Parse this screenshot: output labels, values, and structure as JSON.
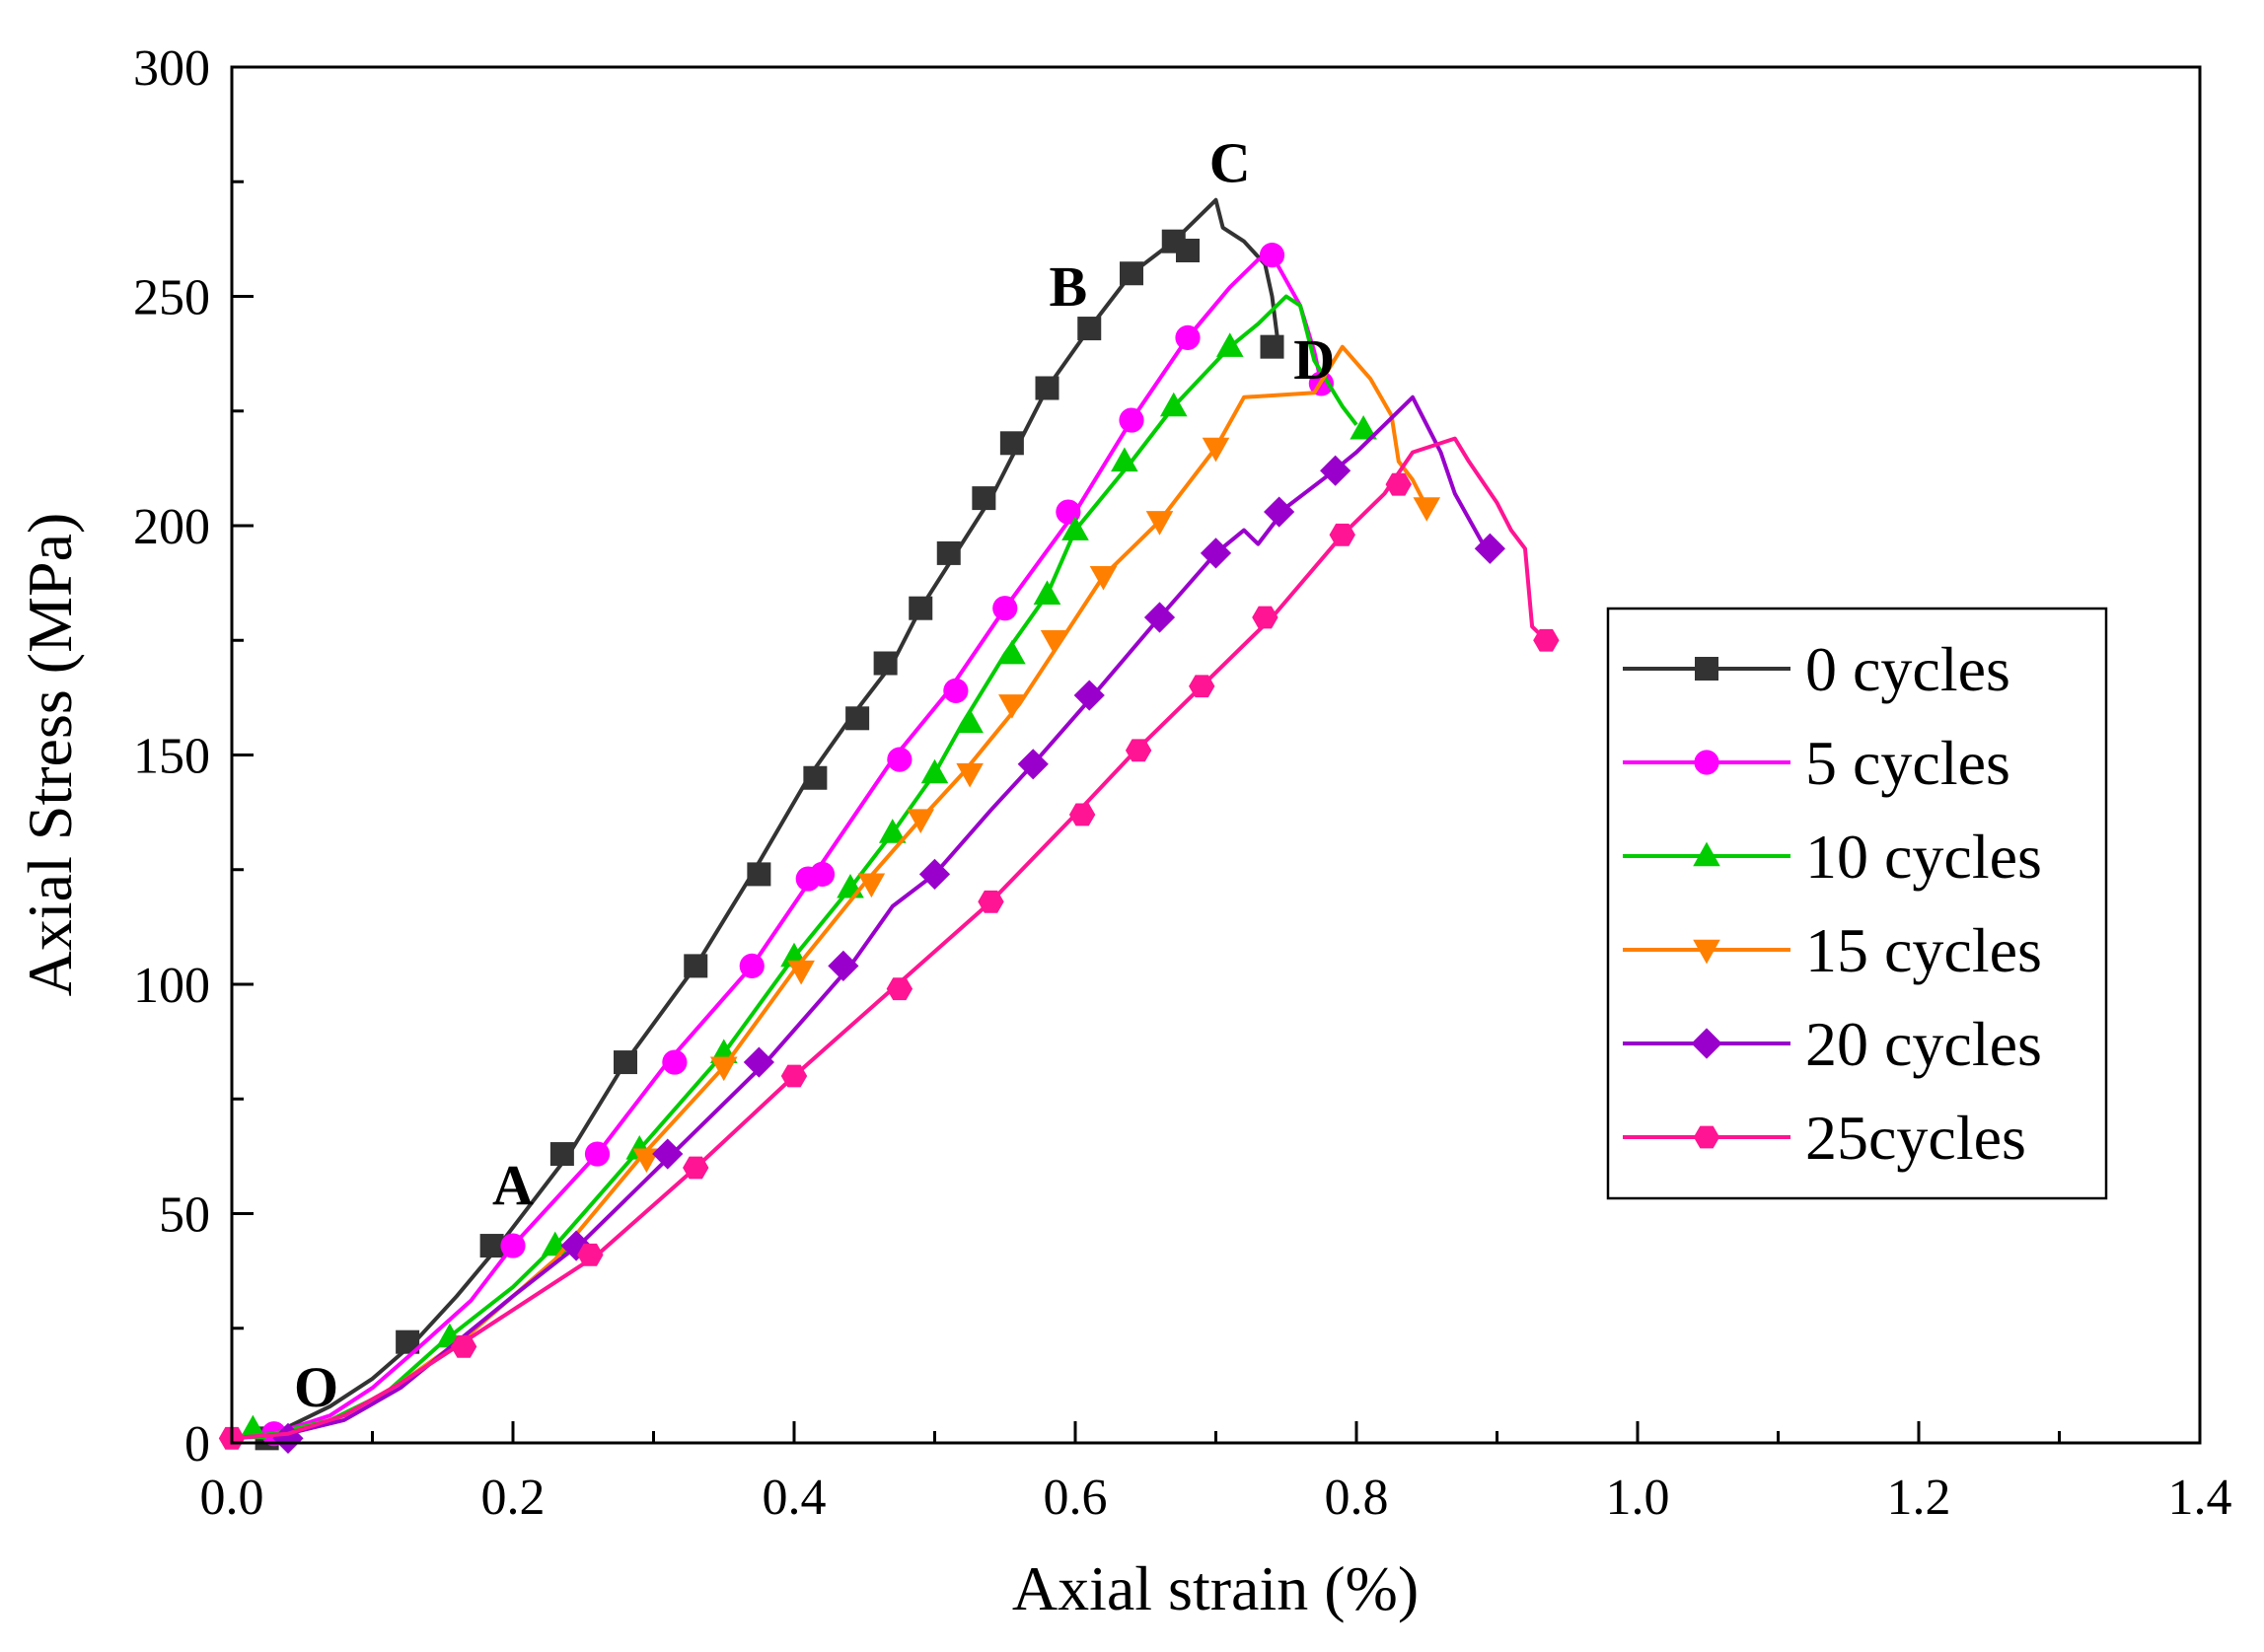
{
  "chart_data": {
    "type": "line",
    "xlabel": "Axial strain (%)",
    "ylabel": "Axial Stress (MPa)",
    "xlim": [
      0.0,
      1.4
    ],
    "ylim": [
      0,
      300
    ],
    "xticks": [
      "0.0",
      "0.2",
      "0.4",
      "0.6",
      "0.8",
      "1.0",
      "1.2",
      "1.4"
    ],
    "yticks": [
      "0",
      "50",
      "100",
      "150",
      "200",
      "250",
      "300"
    ],
    "legend_position": "right",
    "annotations": [
      {
        "text": "O",
        "x": 0.06,
        "y": 8
      },
      {
        "text": "A",
        "x": 0.2,
        "y": 52
      },
      {
        "text": "B",
        "x": 0.595,
        "y": 248
      },
      {
        "text": "C",
        "x": 0.71,
        "y": 275
      },
      {
        "text": "D",
        "x": 0.77,
        "y": 232
      }
    ],
    "series": [
      {
        "name": "0 cycles",
        "color": "#333333",
        "marker": "square",
        "line": [
          [
            0.0,
            1
          ],
          [
            0.03,
            2
          ],
          [
            0.07,
            8
          ],
          [
            0.1,
            14
          ],
          [
            0.13,
            22
          ],
          [
            0.16,
            32
          ],
          [
            0.19,
            43
          ],
          [
            0.24,
            63
          ],
          [
            0.28,
            83
          ],
          [
            0.33,
            104
          ],
          [
            0.37,
            124
          ],
          [
            0.41,
            145
          ],
          [
            0.44,
            158
          ],
          [
            0.47,
            170
          ],
          [
            0.49,
            182
          ],
          [
            0.515,
            194
          ],
          [
            0.54,
            206
          ],
          [
            0.56,
            218
          ],
          [
            0.58,
            230
          ],
          [
            0.61,
            243
          ],
          [
            0.64,
            255
          ],
          [
            0.67,
            262
          ],
          [
            0.7,
            271
          ],
          [
            0.705,
            265
          ],
          [
            0.72,
            262
          ],
          [
            0.735,
            257
          ],
          [
            0.74,
            250
          ],
          [
            0.745,
            238
          ]
        ],
        "markers": [
          [
            0.025,
            1
          ],
          [
            0.125,
            22
          ],
          [
            0.185,
            43
          ],
          [
            0.235,
            63
          ],
          [
            0.28,
            83
          ],
          [
            0.33,
            104
          ],
          [
            0.375,
            124
          ],
          [
            0.415,
            145
          ],
          [
            0.445,
            158
          ],
          [
            0.465,
            170
          ],
          [
            0.49,
            182
          ],
          [
            0.51,
            194
          ],
          [
            0.535,
            206
          ],
          [
            0.555,
            218
          ],
          [
            0.58,
            230
          ],
          [
            0.61,
            243
          ],
          [
            0.64,
            255
          ],
          [
            0.67,
            262
          ],
          [
            0.68,
            260
          ],
          [
            0.74,
            239
          ]
        ]
      },
      {
        "name": "5 cycles",
        "color": "#ff00ff",
        "marker": "circle",
        "line": [
          [
            0.0,
            1
          ],
          [
            0.03,
            2
          ],
          [
            0.07,
            6
          ],
          [
            0.1,
            12
          ],
          [
            0.13,
            20
          ],
          [
            0.17,
            31
          ],
          [
            0.2,
            43
          ],
          [
            0.26,
            63
          ],
          [
            0.31,
            83
          ],
          [
            0.37,
            104
          ],
          [
            0.41,
            122
          ],
          [
            0.47,
            149
          ],
          [
            0.51,
            164
          ],
          [
            0.55,
            182
          ],
          [
            0.6,
            203
          ],
          [
            0.64,
            223
          ],
          [
            0.68,
            241
          ],
          [
            0.71,
            252
          ],
          [
            0.73,
            258
          ],
          [
            0.74,
            259
          ],
          [
            0.76,
            248
          ],
          [
            0.77,
            238
          ],
          [
            0.775,
            231
          ]
        ],
        "markers": [
          [
            0.03,
            2
          ],
          [
            0.2,
            43
          ],
          [
            0.26,
            63
          ],
          [
            0.315,
            83
          ],
          [
            0.37,
            104
          ],
          [
            0.41,
            123
          ],
          [
            0.42,
            124
          ],
          [
            0.475,
            149
          ],
          [
            0.515,
            164
          ],
          [
            0.55,
            182
          ],
          [
            0.595,
            203
          ],
          [
            0.64,
            223
          ],
          [
            0.68,
            241
          ],
          [
            0.74,
            259
          ],
          [
            0.775,
            231
          ]
        ]
      },
      {
        "name": "10 cycles",
        "color": "#00cc00",
        "marker": "triangle-up",
        "line": [
          [
            0.0,
            1
          ],
          [
            0.03,
            2
          ],
          [
            0.07,
            5
          ],
          [
            0.11,
            11
          ],
          [
            0.15,
            22
          ],
          [
            0.2,
            34
          ],
          [
            0.23,
            43
          ],
          [
            0.29,
            64
          ],
          [
            0.35,
            85
          ],
          [
            0.4,
            106
          ],
          [
            0.44,
            121
          ],
          [
            0.47,
            133
          ],
          [
            0.5,
            146
          ],
          [
            0.52,
            157
          ],
          [
            0.55,
            172
          ],
          [
            0.58,
            185
          ],
          [
            0.6,
            199
          ],
          [
            0.64,
            214
          ],
          [
            0.67,
            226
          ],
          [
            0.71,
            239
          ],
          [
            0.73,
            244
          ],
          [
            0.75,
            250
          ],
          [
            0.76,
            248
          ],
          [
            0.77,
            236
          ],
          [
            0.79,
            226
          ],
          [
            0.8,
            222
          ]
        ],
        "markers": [
          [
            0.015,
            3
          ],
          [
            0.155,
            23
          ],
          [
            0.23,
            43
          ],
          [
            0.29,
            64
          ],
          [
            0.35,
            85
          ],
          [
            0.4,
            106
          ],
          [
            0.44,
            121
          ],
          [
            0.47,
            133
          ],
          [
            0.5,
            146
          ],
          [
            0.525,
            157
          ],
          [
            0.555,
            172
          ],
          [
            0.58,
            185
          ],
          [
            0.6,
            199
          ],
          [
            0.635,
            214
          ],
          [
            0.67,
            226
          ],
          [
            0.71,
            239
          ],
          [
            0.805,
            221
          ]
        ]
      },
      {
        "name": "15 cycles",
        "color": "#ff8000",
        "marker": "triangle-down",
        "line": [
          [
            0.0,
            1
          ],
          [
            0.04,
            2
          ],
          [
            0.08,
            6
          ],
          [
            0.12,
            13
          ],
          [
            0.17,
            24
          ],
          [
            0.23,
            40
          ],
          [
            0.29,
            62
          ],
          [
            0.35,
            82
          ],
          [
            0.4,
            103
          ],
          [
            0.45,
            122
          ],
          [
            0.49,
            136
          ],
          [
            0.52,
            146
          ],
          [
            0.56,
            161
          ],
          [
            0.59,
            175
          ],
          [
            0.62,
            189
          ],
          [
            0.66,
            201
          ],
          [
            0.7,
            217
          ],
          [
            0.72,
            228
          ],
          [
            0.77,
            229
          ],
          [
            0.79,
            239
          ],
          [
            0.81,
            232
          ],
          [
            0.825,
            224
          ],
          [
            0.83,
            214
          ],
          [
            0.84,
            210
          ],
          [
            0.85,
            204
          ]
        ],
        "markers": [
          [
            0.295,
            62
          ],
          [
            0.35,
            82
          ],
          [
            0.405,
            103
          ],
          [
            0.455,
            122
          ],
          [
            0.49,
            136
          ],
          [
            0.525,
            146
          ],
          [
            0.555,
            161
          ],
          [
            0.585,
            175
          ],
          [
            0.62,
            189
          ],
          [
            0.66,
            201
          ],
          [
            0.7,
            217
          ],
          [
            0.85,
            204
          ]
        ]
      },
      {
        "name": "20 cycles",
        "color": "#9900cc",
        "marker": "diamond",
        "line": [
          [
            0.0,
            1
          ],
          [
            0.04,
            2
          ],
          [
            0.08,
            5
          ],
          [
            0.12,
            12
          ],
          [
            0.16,
            22
          ],
          [
            0.2,
            32
          ],
          [
            0.25,
            44
          ],
          [
            0.31,
            62
          ],
          [
            0.38,
            83
          ],
          [
            0.44,
            104
          ],
          [
            0.47,
            117
          ],
          [
            0.5,
            124
          ],
          [
            0.54,
            138
          ],
          [
            0.57,
            148
          ],
          [
            0.61,
            162
          ],
          [
            0.66,
            180
          ],
          [
            0.7,
            194
          ],
          [
            0.72,
            199
          ],
          [
            0.73,
            196
          ],
          [
            0.75,
            204
          ],
          [
            0.78,
            211
          ],
          [
            0.8,
            216
          ],
          [
            0.84,
            228
          ],
          [
            0.86,
            216
          ],
          [
            0.87,
            207
          ],
          [
            0.89,
            196
          ]
        ],
        "markers": [
          [
            0.04,
            1
          ],
          [
            0.245,
            43
          ],
          [
            0.31,
            63
          ],
          [
            0.375,
            83
          ],
          [
            0.435,
            104
          ],
          [
            0.5,
            124
          ],
          [
            0.57,
            148
          ],
          [
            0.61,
            163
          ],
          [
            0.66,
            180
          ],
          [
            0.7,
            194
          ],
          [
            0.745,
            203
          ],
          [
            0.785,
            212
          ],
          [
            0.895,
            195
          ]
        ]
      },
      {
        "name": "25cycles",
        "color": "#ff1493",
        "marker": "hexagon",
        "line": [
          [
            0.0,
            1
          ],
          [
            0.04,
            2
          ],
          [
            0.08,
            6
          ],
          [
            0.12,
            13
          ],
          [
            0.16,
            21
          ],
          [
            0.21,
            31
          ],
          [
            0.26,
            41
          ],
          [
            0.33,
            60
          ],
          [
            0.4,
            80
          ],
          [
            0.47,
            99
          ],
          [
            0.54,
            118
          ],
          [
            0.6,
            137
          ],
          [
            0.64,
            150
          ],
          [
            0.69,
            165
          ],
          [
            0.74,
            180
          ],
          [
            0.79,
            198
          ],
          [
            0.82,
            207
          ],
          [
            0.84,
            216
          ],
          [
            0.87,
            219
          ],
          [
            0.88,
            214
          ],
          [
            0.9,
            205
          ],
          [
            0.91,
            199
          ],
          [
            0.92,
            195
          ],
          [
            0.925,
            178
          ],
          [
            0.935,
            175
          ]
        ],
        "markers": [
          [
            0.0,
            1
          ],
          [
            0.165,
            21
          ],
          [
            0.255,
            41
          ],
          [
            0.33,
            60
          ],
          [
            0.4,
            80
          ],
          [
            0.475,
            99
          ],
          [
            0.54,
            118
          ],
          [
            0.605,
            137
          ],
          [
            0.645,
            151
          ],
          [
            0.69,
            165
          ],
          [
            0.735,
            180
          ],
          [
            0.79,
            198
          ],
          [
            0.83,
            209
          ],
          [
            0.935,
            175
          ]
        ]
      }
    ]
  }
}
